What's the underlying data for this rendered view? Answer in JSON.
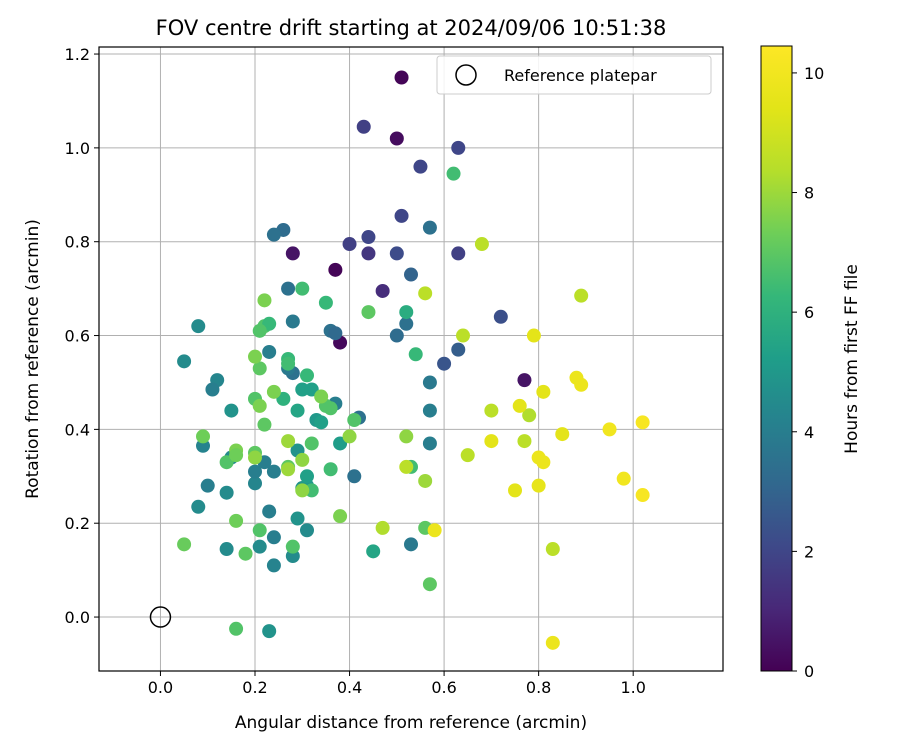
{
  "chart_data": {
    "type": "scatter",
    "title": "FOV centre drift starting at 2024/09/06 10:51:38",
    "xlabel": "Angular distance from reference (arcmin)",
    "ylabel": "Rotation from reference (arcmin)",
    "xlim": [
      -0.13,
      1.19
    ],
    "ylim": [
      -0.115,
      1.215
    ],
    "xticks": [
      "0.0",
      "0.2",
      "0.4",
      "0.6",
      "0.8",
      "1.0"
    ],
    "xtick_values": [
      0.0,
      0.2,
      0.4,
      0.6,
      0.8,
      1.0
    ],
    "yticks": [
      "0.0",
      "0.2",
      "0.4",
      "0.6",
      "0.8",
      "1.0",
      "1.2"
    ],
    "ytick_values": [
      0.0,
      0.2,
      0.4,
      0.6,
      0.8,
      1.0,
      1.2
    ],
    "grid": true,
    "legend": {
      "position": "top-right",
      "entries": [
        "Reference platepar"
      ]
    },
    "colorbar": {
      "label": "Hours from first FF file",
      "range": [
        0,
        10.45
      ],
      "ticks": [
        "0",
        "2",
        "4",
        "6",
        "8",
        "10"
      ],
      "tick_values": [
        0,
        2,
        4,
        6,
        8,
        10
      ],
      "colormap": "viridis"
    },
    "reference": {
      "x": 0.0,
      "y": 0.0
    },
    "points": [
      [
        0.51,
        1.15,
        0.1
      ],
      [
        0.5,
        1.02,
        0.3
      ],
      [
        0.37,
        0.74,
        0.1
      ],
      [
        0.28,
        0.775,
        0.5
      ],
      [
        0.38,
        0.585,
        0.2
      ],
      [
        0.77,
        0.505,
        0.5
      ],
      [
        0.43,
        1.045,
        1.8
      ],
      [
        0.55,
        0.96,
        2.0
      ],
      [
        0.63,
        1.0,
        2.0
      ],
      [
        0.51,
        0.855,
        2.0
      ],
      [
        0.4,
        0.795,
        1.8
      ],
      [
        0.44,
        0.81,
        2.0
      ],
      [
        0.44,
        0.775,
        1.5
      ],
      [
        0.47,
        0.695,
        1.2
      ],
      [
        0.5,
        0.775,
        2.2
      ],
      [
        0.63,
        0.775,
        1.8
      ],
      [
        0.6,
        0.54,
        2.5
      ],
      [
        0.63,
        0.57,
        2.8
      ],
      [
        0.72,
        0.64,
        2.3
      ],
      [
        0.26,
        0.825,
        3.3
      ],
      [
        0.24,
        0.815,
        3.5
      ],
      [
        0.57,
        0.83,
        3.5
      ],
      [
        0.53,
        0.73,
        3.0
      ],
      [
        0.27,
        0.7,
        3.5
      ],
      [
        0.28,
        0.63,
        3.8
      ],
      [
        0.36,
        0.61,
        3.5
      ],
      [
        0.37,
        0.605,
        3.2
      ],
      [
        0.52,
        0.625,
        3.5
      ],
      [
        0.5,
        0.6,
        3.3
      ],
      [
        0.57,
        0.5,
        3.8
      ],
      [
        0.57,
        0.44,
        4.0
      ],
      [
        0.57,
        0.37,
        4.0
      ],
      [
        0.28,
        0.52,
        3.5
      ],
      [
        0.27,
        0.53,
        3.8
      ],
      [
        0.23,
        0.565,
        4.0
      ],
      [
        0.37,
        0.455,
        4.0
      ],
      [
        0.42,
        0.425,
        3.5
      ],
      [
        0.41,
        0.3,
        3.5
      ],
      [
        0.53,
        0.155,
        3.8
      ],
      [
        0.08,
        0.62,
        4.5
      ],
      [
        0.05,
        0.545,
        4.5
      ],
      [
        0.12,
        0.505,
        4.3
      ],
      [
        0.11,
        0.485,
        4.0
      ],
      [
        0.09,
        0.365,
        4.2
      ],
      [
        0.1,
        0.28,
        4.0
      ],
      [
        0.08,
        0.235,
        4.5
      ],
      [
        0.15,
        0.44,
        4.8
      ],
      [
        0.15,
        0.34,
        4.5
      ],
      [
        0.2,
        0.285,
        4.3
      ],
      [
        0.2,
        0.31,
        4.0
      ],
      [
        0.22,
        0.33,
        4.0
      ],
      [
        0.24,
        0.31,
        4.0
      ],
      [
        0.23,
        0.225,
        4.0
      ],
      [
        0.24,
        0.17,
        4.0
      ],
      [
        0.24,
        0.11,
        4.2
      ],
      [
        0.23,
        -0.03,
        4.8
      ],
      [
        0.14,
        0.265,
        4.5
      ],
      [
        0.14,
        0.145,
        4.5
      ],
      [
        0.21,
        0.15,
        4.5
      ],
      [
        0.28,
        0.13,
        4.5
      ],
      [
        0.29,
        0.21,
        4.8
      ],
      [
        0.31,
        0.185,
        4.5
      ],
      [
        0.29,
        0.355,
        4.8
      ],
      [
        0.3,
        0.275,
        4.8
      ],
      [
        0.31,
        0.28,
        5.0
      ],
      [
        0.31,
        0.3,
        5.3
      ],
      [
        0.29,
        0.44,
        5.5
      ],
      [
        0.3,
        0.485,
        5.3
      ],
      [
        0.32,
        0.485,
        5.3
      ],
      [
        0.33,
        0.42,
        5.0
      ],
      [
        0.34,
        0.415,
        5.3
      ],
      [
        0.38,
        0.37,
        5.2
      ],
      [
        0.45,
        0.14,
        5.5
      ],
      [
        0.52,
        0.65,
        5.8
      ],
      [
        0.27,
        0.55,
        6.3
      ],
      [
        0.27,
        0.54,
        6.5
      ],
      [
        0.26,
        0.465,
        6.0
      ],
      [
        0.31,
        0.515,
        6.3
      ],
      [
        0.35,
        0.67,
        6.3
      ],
      [
        0.3,
        0.7,
        6.5
      ],
      [
        0.2,
        0.465,
        6.8
      ],
      [
        0.22,
        0.62,
        6.8
      ],
      [
        0.23,
        0.625,
        6.3
      ],
      [
        0.21,
        0.61,
        6.8
      ],
      [
        0.21,
        0.53,
        7.0
      ],
      [
        0.22,
        0.41,
        7.0
      ],
      [
        0.2,
        0.35,
        7.0
      ],
      [
        0.18,
        0.135,
        7.0
      ],
      [
        0.16,
        -0.025,
        6.8
      ],
      [
        0.54,
        0.56,
        6.3
      ],
      [
        0.62,
        0.945,
        6.5
      ],
      [
        0.53,
        0.32,
        6.5
      ],
      [
        0.36,
        0.315,
        6.5
      ],
      [
        0.32,
        0.27,
        6.5
      ],
      [
        0.32,
        0.37,
        6.8
      ],
      [
        0.35,
        0.45,
        6.8
      ],
      [
        0.36,
        0.445,
        6.8
      ],
      [
        0.41,
        0.42,
        6.8
      ],
      [
        0.14,
        0.33,
        6.8
      ],
      [
        0.21,
        0.185,
        6.8
      ],
      [
        0.27,
        0.32,
        7.0
      ],
      [
        0.28,
        0.15,
        6.8
      ],
      [
        0.56,
        0.19,
        7.0
      ],
      [
        0.57,
        0.07,
        7.0
      ],
      [
        0.44,
        0.65,
        7.0
      ],
      [
        0.05,
        0.155,
        7.2
      ],
      [
        0.09,
        0.385,
        7.3
      ],
      [
        0.16,
        0.355,
        7.5
      ],
      [
        0.16,
        0.345,
        7.3
      ],
      [
        0.2,
        0.555,
        7.5
      ],
      [
        0.22,
        0.675,
        7.5
      ],
      [
        0.21,
        0.45,
        7.5
      ],
      [
        0.24,
        0.48,
        7.5
      ],
      [
        0.16,
        0.205,
        7.3
      ],
      [
        0.2,
        0.34,
        7.8
      ],
      [
        0.27,
        0.375,
        8.0
      ],
      [
        0.27,
        0.315,
        8.0
      ],
      [
        0.3,
        0.335,
        7.8
      ],
      [
        0.34,
        0.47,
        7.5
      ],
      [
        0.38,
        0.215,
        7.5
      ],
      [
        0.4,
        0.385,
        7.8
      ],
      [
        0.52,
        0.385,
        7.8
      ],
      [
        0.3,
        0.27,
        7.8
      ],
      [
        0.56,
        0.29,
        8.0
      ],
      [
        0.47,
        0.19,
        8.3
      ],
      [
        0.52,
        0.32,
        8.5
      ],
      [
        0.56,
        0.69,
        8.5
      ],
      [
        0.64,
        0.6,
        8.5
      ],
      [
        0.65,
        0.345,
        8.5
      ],
      [
        0.68,
        0.795,
        8.5
      ],
      [
        0.7,
        0.44,
        8.5
      ],
      [
        0.77,
        0.375,
        8.5
      ],
      [
        0.78,
        0.43,
        8.3
      ],
      [
        0.83,
        0.145,
        8.5
      ],
      [
        0.89,
        0.685,
        8.5
      ],
      [
        0.58,
        0.185,
        9.8
      ],
      [
        0.7,
        0.375,
        9.5
      ],
      [
        0.75,
        0.27,
        9.5
      ],
      [
        0.76,
        0.45,
        9.5
      ],
      [
        0.79,
        0.6,
        9.5
      ],
      [
        0.8,
        0.34,
        9.8
      ],
      [
        0.8,
        0.28,
        9.6
      ],
      [
        0.81,
        0.48,
        9.5
      ],
      [
        0.81,
        0.33,
        9.8
      ],
      [
        0.85,
        0.39,
        9.5
      ],
      [
        0.88,
        0.51,
        9.8
      ],
      [
        0.89,
        0.495,
        9.8
      ],
      [
        0.83,
        -0.055,
        9.8
      ],
      [
        0.95,
        0.4,
        10.0
      ],
      [
        0.98,
        0.295,
        10.0
      ],
      [
        1.02,
        0.415,
        10.2
      ],
      [
        1.02,
        0.26,
        10.2
      ]
    ]
  }
}
